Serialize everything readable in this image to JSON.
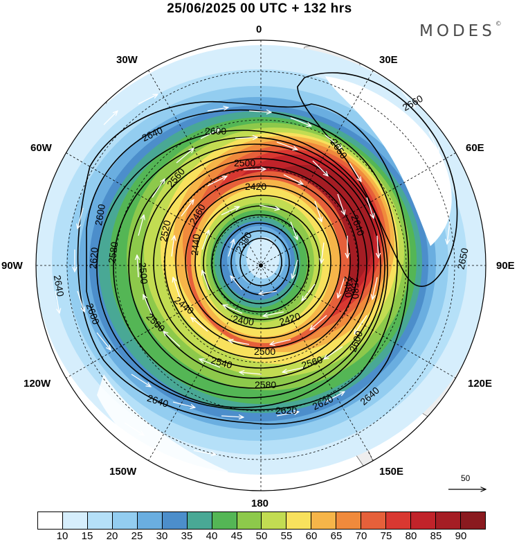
{
  "title": "25/06/2025  00 UTC  + 132 hrs",
  "brand": "MODES",
  "brand_mark": "©",
  "longitude_labels": {
    "north": "0",
    "e30": "30E",
    "e60": "60E",
    "e90": "90E",
    "e120": "120E",
    "e150": "150E",
    "south": "180",
    "w150": "150W",
    "w120": "120W",
    "w90": "90W",
    "w60": "60W",
    "w30": "30W"
  },
  "contour_labels": [
    {
      "id": "c2660",
      "text": "2660"
    },
    {
      "id": "c2650a",
      "text": "2650"
    },
    {
      "id": "c2650b",
      "text": "2650"
    },
    {
      "id": "c2640n",
      "text": "2640"
    },
    {
      "id": "c2640w",
      "text": "2640"
    },
    {
      "id": "c2640s",
      "text": "2640"
    },
    {
      "id": "c2640e",
      "text": "2640"
    },
    {
      "id": "c2640ne",
      "text": "2640"
    },
    {
      "id": "c2620w",
      "text": "2620"
    },
    {
      "id": "c2620s",
      "text": "2620"
    },
    {
      "id": "c2620se",
      "text": "2620"
    },
    {
      "id": "c2600n",
      "text": "2600"
    },
    {
      "id": "c2600w",
      "text": "2600"
    },
    {
      "id": "c2600sw",
      "text": "2600"
    },
    {
      "id": "c2600e",
      "text": "2600"
    },
    {
      "id": "c2580w",
      "text": "2580"
    },
    {
      "id": "c2580s",
      "text": "2580"
    },
    {
      "id": "c2580e",
      "text": "2580"
    },
    {
      "id": "c2560n",
      "text": "2560"
    },
    {
      "id": "c2560sw",
      "text": "2560"
    },
    {
      "id": "c2560s",
      "text": "2560"
    },
    {
      "id": "c2540",
      "text": "2540"
    },
    {
      "id": "c2520",
      "text": "2520"
    },
    {
      "id": "c2500n",
      "text": "2500"
    },
    {
      "id": "c2500w",
      "text": "2500"
    },
    {
      "id": "c2500s",
      "text": "2500"
    },
    {
      "id": "c2480",
      "text": "2480"
    },
    {
      "id": "c2460",
      "text": "2460"
    },
    {
      "id": "c2440",
      "text": "2440"
    },
    {
      "id": "c2440b",
      "text": "2440"
    },
    {
      "id": "c2420n",
      "text": "2420"
    },
    {
      "id": "c2420s",
      "text": "2420"
    },
    {
      "id": "c2400",
      "text": "2400"
    },
    {
      "id": "c2380",
      "text": "2380"
    }
  ],
  "wind_reference": {
    "value": "50"
  },
  "legend": {
    "labels": [
      "10",
      "15",
      "20",
      "25",
      "30",
      "35",
      "40",
      "45",
      "50",
      "55",
      "60",
      "65",
      "70",
      "75",
      "80",
      "85",
      "90"
    ],
    "colors": [
      "#ffffff",
      "#d6eefc",
      "#b5e0f8",
      "#93cdf0",
      "#6aaee0",
      "#4c8ecb",
      "#49a895",
      "#54b655",
      "#8dc94b",
      "#c2dc52",
      "#f8e15d",
      "#f6b549",
      "#f08a3c",
      "#e6603a",
      "#d93831",
      "#c1232a",
      "#a51d24",
      "#8a1a1f"
    ]
  }
}
